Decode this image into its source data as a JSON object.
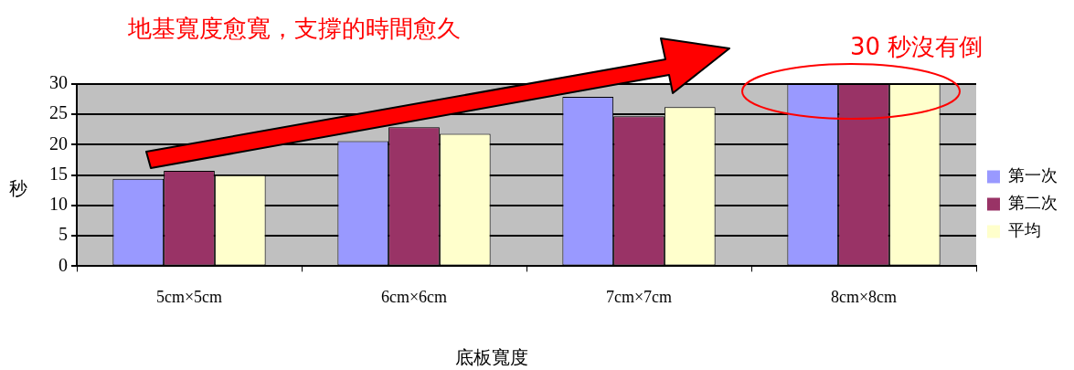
{
  "chart_data": {
    "type": "bar",
    "xlabel": "底板寬度",
    "ylabel": "秒",
    "categories": [
      "5cm×5cm",
      "6cm×6cm",
      "7cm×7cm",
      "8cm×8cm"
    ],
    "series": [
      {
        "name": "第一次",
        "color": "#9999ff",
        "values": [
          14.4,
          20.6,
          27.9,
          30
        ]
      },
      {
        "name": "第二次",
        "color": "#993366",
        "values": [
          15.7,
          22.9,
          24.7,
          30
        ]
      },
      {
        "name": "平均",
        "color": "#ffffcc",
        "values": [
          15.0,
          21.8,
          26.2,
          30
        ]
      }
    ],
    "ylim": [
      0,
      30
    ],
    "yticks": [
      0,
      5,
      10,
      15,
      20,
      25,
      30
    ],
    "grid": "y",
    "legend": "right",
    "annotations": [
      "地基寬度愈寬，支撐的時間愈久",
      "30 秒沒有倒"
    ]
  }
}
